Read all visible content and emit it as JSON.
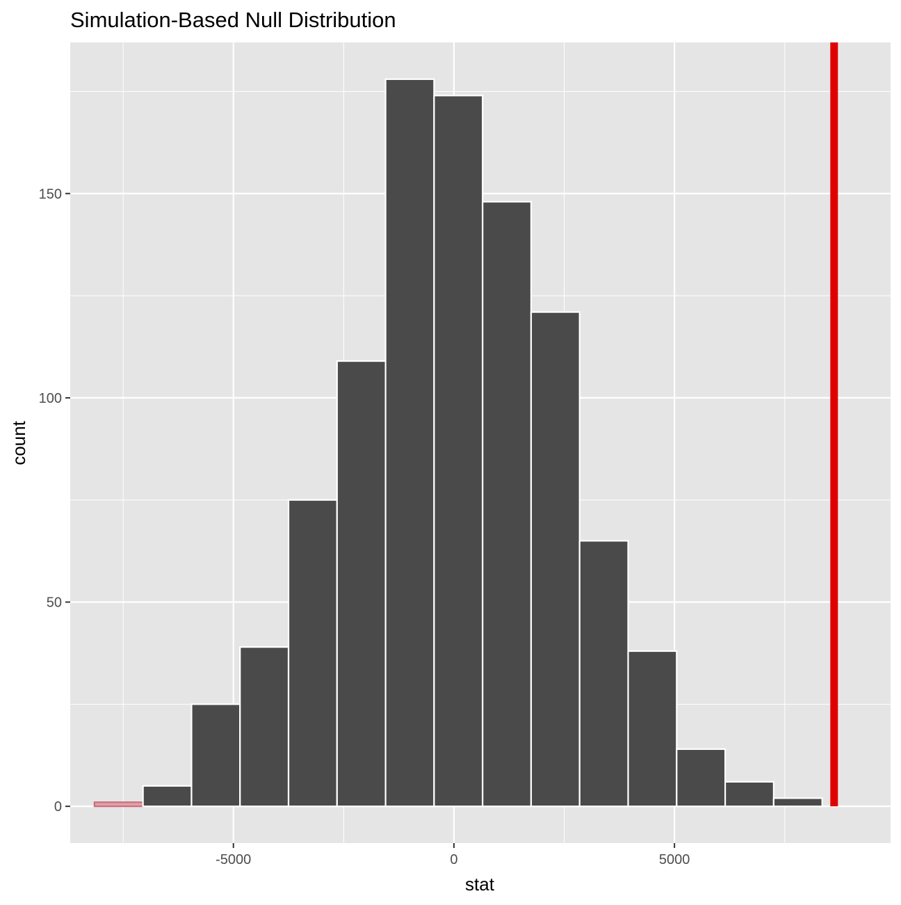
{
  "chart_data": {
    "type": "bar",
    "title": "Simulation-Based Null Distribution",
    "xlabel": "stat",
    "ylabel": "count",
    "xlim": [
      -8700,
      9900
    ],
    "ylim": [
      -9,
      187
    ],
    "x_ticks": [
      -5000,
      0,
      5000
    ],
    "x_tick_labels": [
      "-5000",
      "0",
      "5000"
    ],
    "y_ticks": [
      0,
      50,
      100,
      150
    ],
    "y_tick_labels": [
      "0",
      "50",
      "100",
      "150"
    ],
    "grid": true,
    "legend": "none",
    "bin_width": 1100,
    "bins": [
      {
        "x_start": -8150,
        "x_end": -7050,
        "count": 1,
        "shaded": true
      },
      {
        "x_start": -7050,
        "x_end": -5950,
        "count": 5,
        "shaded": false
      },
      {
        "x_start": -5950,
        "x_end": -4850,
        "count": 25,
        "shaded": false
      },
      {
        "x_start": -4850,
        "x_end": -3750,
        "count": 39,
        "shaded": false
      },
      {
        "x_start": -3750,
        "x_end": -2650,
        "count": 75,
        "shaded": false
      },
      {
        "x_start": -2650,
        "x_end": -1550,
        "count": 109,
        "shaded": false
      },
      {
        "x_start": -1550,
        "x_end": -450,
        "count": 178,
        "shaded": false
      },
      {
        "x_start": -450,
        "x_end": 650,
        "count": 174,
        "shaded": false
      },
      {
        "x_start": 650,
        "x_end": 1750,
        "count": 148,
        "shaded": false
      },
      {
        "x_start": 1750,
        "x_end": 2850,
        "count": 121,
        "shaded": false
      },
      {
        "x_start": 2850,
        "x_end": 3950,
        "count": 65,
        "shaded": false
      },
      {
        "x_start": 3950,
        "x_end": 5050,
        "count": 38,
        "shaded": false
      },
      {
        "x_start": 5050,
        "x_end": 6150,
        "count": 14,
        "shaded": false
      },
      {
        "x_start": 6150,
        "x_end": 7250,
        "count": 6,
        "shaded": false
      },
      {
        "x_start": 7250,
        "x_end": 8350,
        "count": 2,
        "shaded": false
      }
    ],
    "observed_stat": 8620,
    "colors": {
      "panel_background": "#e5e5e5",
      "grid": "#ffffff",
      "bar_fill": "#4a4a4a",
      "bar_outline": "#ffffff",
      "shaded_bar_fill": "#e0a1aa",
      "shaded_bar_outline": "#c96f7c",
      "observed_line": "#e00000"
    }
  }
}
